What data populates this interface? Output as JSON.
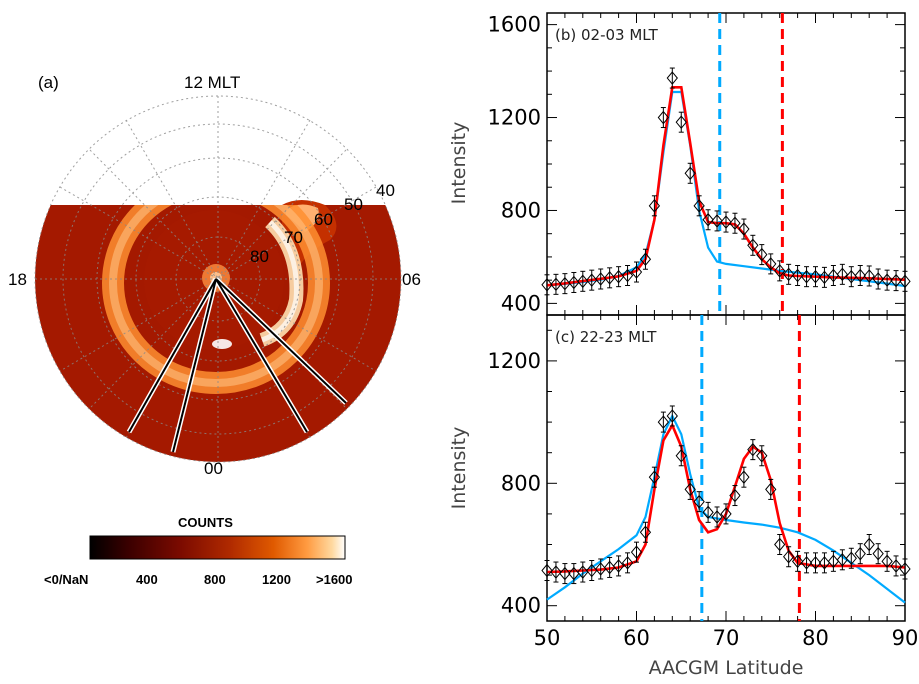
{
  "polar": {
    "panel_label": "(a)",
    "noon_label": "12 MLT",
    "dawn_label": "06",
    "dusk_label": "18",
    "midnight_label": "00",
    "lat_labels": [
      "40",
      "50",
      "60",
      "70",
      "80"
    ],
    "colorbar": {
      "title": "COUNTS",
      "tick_labels": [
        "<0/NaN",
        "400",
        "800",
        "1200",
        ">1600"
      ],
      "colors": [
        "#000000",
        "#3a0000",
        "#7a0a00",
        "#b02a00",
        "#e05a00",
        "#ff9a40",
        "#ffd9a0",
        "#ffffff"
      ]
    }
  },
  "chart_data": [
    {
      "type": "line",
      "panel_label": "(b) 02-03 MLT",
      "xlabel": "",
      "ylabel": "Intensity",
      "xlim": [
        50,
        90
      ],
      "ylim": [
        350,
        1650
      ],
      "yticks": [
        400,
        800,
        1200,
        1600
      ],
      "observed_x": [
        50,
        51,
        52,
        53,
        54,
        55,
        56,
        57,
        58,
        59,
        60,
        61,
        62,
        63,
        64,
        65,
        66,
        67,
        68,
        69,
        70,
        71,
        72,
        73,
        74,
        75,
        76,
        77,
        78,
        79,
        80,
        81,
        82,
        83,
        84,
        85,
        86,
        87,
        88,
        89,
        90
      ],
      "observed_y": [
        480,
        482,
        485,
        490,
        495,
        500,
        505,
        510,
        515,
        520,
        535,
        590,
        820,
        1200,
        1370,
        1180,
        960,
        820,
        760,
        755,
        750,
        745,
        720,
        650,
        610,
        570,
        540,
        525,
        520,
        515,
        515,
        512,
        520,
        525,
        515,
        520,
        518,
        505,
        500,
        498,
        495
      ],
      "series": [
        {
          "name": "",
          "color": "#00aaff",
          "x": [
            50,
            52,
            54,
            56,
            58,
            60,
            61,
            62,
            63,
            64,
            65,
            66,
            67,
            68,
            69,
            70,
            72,
            74,
            76,
            78,
            80,
            82,
            84,
            86,
            88,
            90
          ],
          "values": [
            478,
            484,
            492,
            502,
            518,
            555,
            610,
            760,
            1050,
            1310,
            1310,
            1080,
            800,
            640,
            580,
            570,
            560,
            550,
            540,
            532,
            525,
            515,
            505,
            495,
            485,
            475
          ]
        },
        {
          "name": "",
          "color": "#ff0000",
          "x": [
            50,
            52,
            54,
            56,
            58,
            60,
            61,
            62,
            63,
            64,
            65,
            66,
            67,
            68,
            69,
            70,
            71,
            72,
            73,
            74,
            75,
            76,
            77,
            78,
            80,
            82,
            84,
            86,
            88,
            90
          ],
          "values": [
            478,
            486,
            496,
            506,
            516,
            540,
            590,
            760,
            1080,
            1330,
            1330,
            1090,
            840,
            750,
            745,
            745,
            740,
            700,
            640,
            590,
            555,
            530,
            520,
            518,
            515,
            512,
            510,
            508,
            505,
            502
          ]
        }
      ],
      "vlines": [
        {
          "x": 69.3,
          "color": "#00aaff"
        },
        {
          "x": 76.3,
          "color": "#ff0000"
        }
      ]
    },
    {
      "type": "line",
      "panel_label": "(c) 22-23 MLT",
      "xlabel": "AACGM Latitude",
      "ylabel": "Intensity",
      "xlim": [
        50,
        90
      ],
      "ylim": [
        350,
        1350
      ],
      "xticks": [
        50,
        60,
        70,
        80,
        90
      ],
      "yticks": [
        400,
        800,
        1200
      ],
      "observed_x": [
        50,
        51,
        52,
        53,
        54,
        55,
        56,
        57,
        58,
        59,
        60,
        61,
        62,
        63,
        64,
        65,
        66,
        67,
        68,
        69,
        70,
        71,
        72,
        73,
        74,
        75,
        76,
        77,
        78,
        79,
        80,
        81,
        82,
        83,
        84,
        85,
        86,
        87,
        88,
        89,
        90
      ],
      "observed_y": [
        515,
        510,
        505,
        505,
        510,
        515,
        520,
        525,
        530,
        540,
        575,
        640,
        820,
        1000,
        1020,
        890,
        780,
        740,
        705,
        690,
        700,
        760,
        820,
        910,
        890,
        780,
        600,
        560,
        545,
        540,
        540,
        540,
        545,
        550,
        555,
        570,
        600,
        570,
        545,
        530,
        520
      ],
      "series": [
        {
          "name": "",
          "color": "#00aaff",
          "x": [
            50,
            52,
            54,
            56,
            58,
            60,
            61,
            62,
            63,
            64,
            65,
            66,
            67,
            68,
            70,
            72,
            74,
            76,
            78,
            80,
            82,
            84,
            86,
            88,
            90
          ],
          "values": [
            420,
            460,
            505,
            545,
            585,
            630,
            690,
            820,
            960,
            1020,
            960,
            830,
            720,
            690,
            680,
            672,
            665,
            655,
            640,
            615,
            580,
            540,
            500,
            455,
            410
          ]
        },
        {
          "name": "",
          "color": "#ff0000",
          "x": [
            50,
            52,
            54,
            56,
            58,
            60,
            61,
            62,
            63,
            64,
            65,
            66,
            67,
            68,
            69,
            70,
            71,
            72,
            73,
            74,
            75,
            76,
            77,
            78,
            80,
            82,
            84,
            86,
            88,
            90
          ],
          "values": [
            510,
            512,
            515,
            518,
            525,
            545,
            600,
            780,
            940,
            990,
            920,
            780,
            680,
            640,
            650,
            700,
            790,
            880,
            920,
            900,
            810,
            670,
            580,
            540,
            530,
            530,
            530,
            530,
            530,
            525
          ]
        }
      ],
      "vlines": [
        {
          "x": 67.3,
          "color": "#00aaff"
        },
        {
          "x": 78.2,
          "color": "#ff0000"
        }
      ]
    }
  ]
}
